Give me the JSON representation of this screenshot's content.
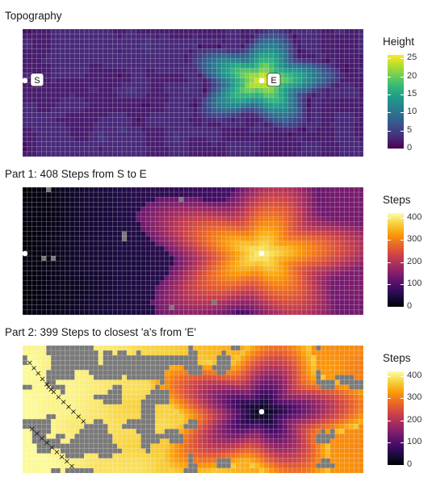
{
  "chart_data": [
    {
      "type": "heatmap",
      "title": "Topography",
      "legend": {
        "title": "Height",
        "ticks": [
          0,
          5,
          10,
          15,
          20,
          25
        ],
        "range": [
          0,
          26
        ],
        "palette": "viridis",
        "placement": "right"
      },
      "grid": {
        "cols": 72,
        "rows": 26
      },
      "peak": {
        "col": 50,
        "row": 10,
        "value": 26
      },
      "markers": [
        {
          "label": "S",
          "col": 0,
          "row": 10
        },
        {
          "label": "E",
          "col": 50,
          "row": 10
        }
      ]
    },
    {
      "type": "heatmap",
      "title": "Part 1: 408 Steps from S to E",
      "legend": {
        "title": "Steps",
        "ticks": [
          0,
          100,
          200,
          300,
          400
        ],
        "range": [
          0,
          420
        ],
        "palette": "inferno",
        "placement": "right"
      },
      "grid": {
        "cols": 72,
        "rows": 26
      },
      "unvisited_color": "#7a7a7a",
      "markers": [
        {
          "label": "",
          "col": 0,
          "row": 13
        },
        {
          "label": "",
          "col": 50,
          "row": 13
        }
      ]
    },
    {
      "type": "heatmap",
      "title": "Part 2: 399 Steps to closest 'a's from 'E'",
      "legend": {
        "title": "Steps",
        "ticks": [
          0,
          100,
          200,
          300,
          400
        ],
        "range": [
          0,
          420
        ],
        "palette": "inferno",
        "placement": "right"
      },
      "grid": {
        "cols": 72,
        "rows": 26
      },
      "unvisited_color": "#7a7a7a",
      "markers": [
        {
          "label": "",
          "col": 50,
          "row": 13
        }
      ],
      "closest_a_marker": "×"
    }
  ]
}
